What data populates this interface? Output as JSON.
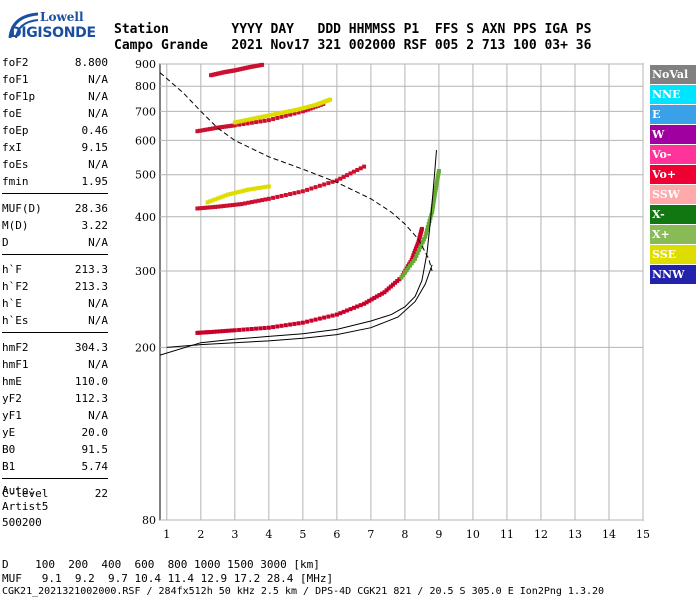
{
  "logo": {
    "line1": "Lowell",
    "line2": "DIGISONDE"
  },
  "header": {
    "row1": "Station        YYYY DAY   DDD HHMMSS P1  FFS S AXN PPS IGA PS",
    "row2": "Campo Grande   2021 Nov17 321 002000 RSF 005 2 713 100 03+ 36"
  },
  "params": {
    "group1": [
      {
        "name": "foF2",
        "value": "8.800"
      },
      {
        "name": "foF1",
        "value": "N/A"
      },
      {
        "name": "foF1p",
        "value": "N/A"
      },
      {
        "name": "foE",
        "value": "N/A"
      },
      {
        "name": "foEp",
        "value": "0.46"
      },
      {
        "name": "fxI",
        "value": "9.15"
      },
      {
        "name": "foEs",
        "value": "N/A"
      },
      {
        "name": "fmin",
        "value": "1.95"
      }
    ],
    "group2": [
      {
        "name": "MUF(D)",
        "value": "28.36"
      },
      {
        "name": "M(D)",
        "value": "3.22"
      },
      {
        "name": "D",
        "value": "N/A"
      }
    ],
    "group3": [
      {
        "name": "h`F",
        "value": "213.3"
      },
      {
        "name": "h`F2",
        "value": "213.3"
      },
      {
        "name": "h`E",
        "value": "N/A"
      },
      {
        "name": "h`Es",
        "value": "N/A"
      }
    ],
    "group4": [
      {
        "name": "hmF2",
        "value": "304.3"
      },
      {
        "name": "hmF1",
        "value": "N/A"
      },
      {
        "name": "hmE",
        "value": "110.0"
      },
      {
        "name": "yF2",
        "value": "112.3"
      },
      {
        "name": "yF1",
        "value": "N/A"
      },
      {
        "name": "yE",
        "value": "20.0"
      },
      {
        "name": "B0",
        "value": "91.5"
      },
      {
        "name": "B1",
        "value": "5.74"
      }
    ],
    "group5": [
      {
        "name": "C-level",
        "value": "22"
      }
    ]
  },
  "auto": {
    "line1": "Auto:",
    "line2": "Artist5",
    "line3": "500200"
  },
  "bottom": {
    "d_row": "D    100  200  400  600  800 1000 1500 3000 [km]",
    "muf_row": "MUF   9.1  9.2  9.7 10.4 11.4 12.9 17.2 28.4 [MHz]",
    "footer": "CGK21_2021321002000.RSF / 284fx512h 50 kHz 2.5 km / DPS-4D CGK21 821 / 20.5 S 305.0 E Ion2Png 1.3.20"
  },
  "legend": [
    {
      "label": "NoVal",
      "color": "#808080"
    },
    {
      "label": "NNE",
      "color": "#00e5ff"
    },
    {
      "label": "E",
      "color": "#3aa0e8"
    },
    {
      "label": "W",
      "color": "#a0009f"
    },
    {
      "label": "Vo-",
      "color": "#ff3399"
    },
    {
      "label": "Vo+",
      "color": "#ee0033"
    },
    {
      "label": "SSW",
      "color": "#ffaaaa"
    },
    {
      "label": "X-",
      "color": "#117711"
    },
    {
      "label": "X+",
      "color": "#88bb55"
    },
    {
      "label": "SSE",
      "color": "#dddd00"
    },
    {
      "label": "NNW",
      "color": "#2222aa"
    }
  ],
  "chart_data": {
    "type": "scatter",
    "xlim": [
      0.8,
      15
    ],
    "ylim": [
      80,
      900
    ],
    "x_ticks": [
      "1",
      "2",
      "3",
      "4",
      "5",
      "6",
      "7",
      "8",
      "9",
      "10",
      "11",
      "12",
      "13",
      "14",
      "15"
    ],
    "y_ticks": [
      "80",
      "200",
      "300",
      "400",
      "500",
      "600",
      "700",
      "800",
      "900"
    ],
    "y_tick_values": [
      80,
      200,
      300,
      400,
      500,
      600,
      700,
      800,
      900
    ],
    "grid": true,
    "y_scale": "log",
    "traces": [
      {
        "name": "O 1st hop",
        "color": "#c8002a",
        "x": [
          1.9,
          2.3,
          3.0,
          4.0,
          5.0,
          6.0,
          6.8,
          7.4,
          7.9,
          8.2,
          8.4,
          8.5
        ],
        "y": [
          216,
          217,
          219,
          222,
          228,
          238,
          252,
          268,
          290,
          318,
          350,
          375
        ]
      },
      {
        "name": "X 1st hop",
        "color": "#66aa33",
        "x": [
          7.9,
          8.3,
          8.6,
          8.8,
          8.9,
          9.0
        ],
        "y": [
          290,
          320,
          360,
          410,
          460,
          510
        ]
      },
      {
        "name": "2nd hop",
        "color": "#cc1030",
        "x": [
          1.9,
          2.5,
          3.2,
          4.0,
          5.0,
          6.0,
          6.8
        ],
        "y": [
          418,
          422,
          428,
          440,
          458,
          485,
          522
        ]
      },
      {
        "name": "2nd hop Y",
        "color": "#dddd00",
        "x": [
          2.2,
          2.8,
          3.4,
          4.0
        ],
        "y": [
          432,
          450,
          462,
          470
        ]
      },
      {
        "name": "3rd hop",
        "color": "#cc1030",
        "x": [
          1.9,
          2.5,
          3.0,
          4.0,
          5.0,
          5.6
        ],
        "y": [
          630,
          642,
          650,
          668,
          700,
          728
        ]
      },
      {
        "name": "3rd hop Y",
        "color": "#dddd00",
        "x": [
          3.0,
          3.6,
          4.2,
          4.8,
          5.4,
          5.8
        ],
        "y": [
          660,
          675,
          690,
          705,
          725,
          745
        ]
      },
      {
        "name": "4th hop",
        "color": "#cc1030",
        "x": [
          2.3,
          2.7,
          3.0,
          3.4,
          3.8
        ],
        "y": [
          848,
          862,
          870,
          884,
          896
        ]
      }
    ],
    "profile_line": {
      "x": [
        0.8,
        2.0,
        3.0,
        4.0,
        5.0,
        6.0,
        7.0,
        7.6,
        8.0,
        8.3,
        8.5,
        8.65,
        8.75,
        8.82,
        8.88,
        8.93
      ],
      "y": [
        192,
        205,
        209,
        212,
        215,
        220,
        230,
        238,
        248,
        262,
        285,
        330,
        390,
        450,
        510,
        570
      ]
    },
    "profile_line2": {
      "x": [
        1.0,
        2.0,
        3.0,
        4.0,
        5.0,
        6.0,
        7.0,
        7.8,
        8.3,
        8.6,
        8.8
      ],
      "y": [
        200,
        203,
        205,
        207,
        210,
        214,
        222,
        235,
        255,
        280,
        310
      ]
    },
    "muf_dashed": {
      "x": [
        0.8,
        1.5,
        2.0,
        2.5,
        3.0,
        4.0,
        5.0,
        6.0,
        7.0,
        7.6,
        8.0,
        8.4,
        8.7,
        8.8
      ],
      "y": [
        860,
        770,
        700,
        640,
        600,
        550,
        515,
        480,
        440,
        410,
        385,
        355,
        320,
        300
      ]
    }
  }
}
